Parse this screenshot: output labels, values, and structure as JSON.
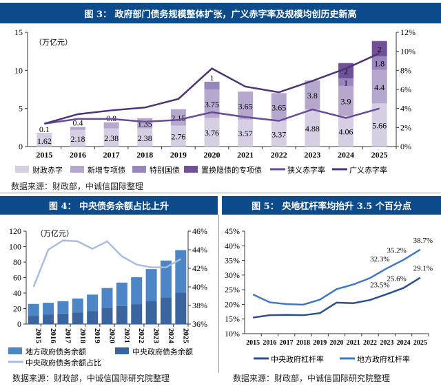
{
  "fig3": {
    "title": "图 3： 政府部门债务规模整体扩张，广义赤字率及规模均创历史新高",
    "source": "数据来源：财政部，中诚信国际整理"
  },
  "fig4": {
    "title": "图 4： 中央债务余额占比上升",
    "source": "数据来源：财政部，中诚信国际研究院整理"
  },
  "fig5": {
    "title": "图 5： 央地杠杆率均抬升 3.5 个百分点",
    "source": "数据来源：财政部，中诚信国际研究院整理"
  },
  "chart_data": [
    {
      "type": "bar",
      "stacked": true,
      "unit_label": "（万亿元）",
      "categories": [
        "2015",
        "2016",
        "2017",
        "2018",
        "2019",
        "2020",
        "2021",
        "2022",
        "2023",
        "2024",
        "2025"
      ],
      "ylim": [
        0,
        15
      ],
      "yticks": [
        "0",
        "5",
        "10",
        "15"
      ],
      "y2lim": [
        0,
        12
      ],
      "y2ticks": [
        "0%",
        "2%",
        "4%",
        "6%",
        "8%",
        "10%",
        "12%"
      ],
      "series": [
        {
          "name": "财政赤字",
          "kind": "bar",
          "color": "#d6cfe3",
          "values": [
            1.62,
            2.18,
            2.38,
            2.38,
            2.76,
            3.76,
            3.57,
            3.37,
            4.88,
            4.06,
            5.66
          ],
          "labels": [
            "1.62",
            "2.18",
            "2.38",
            "2.38",
            "2.76",
            "3.76",
            "3.57",
            "3.37",
            "4.88",
            "4.06",
            "5.66"
          ]
        },
        {
          "name": "新增专项债",
          "kind": "bar",
          "color": "#b5a8cc",
          "values": [
            0.1,
            0.4,
            0.8,
            1.35,
            2.15,
            3.75,
            3.65,
            3.65,
            3.8,
            3.9,
            4.4
          ],
          "labels": [
            "0.1",
            "0.4",
            "0.8",
            "1.35",
            "2.15",
            "3.75",
            "3.65",
            "3.65",
            "3.8",
            "3.9",
            "4.4"
          ]
        },
        {
          "name": "特别国债",
          "kind": "bar",
          "color": "#9a86be",
          "values": [
            0,
            0,
            0,
            0,
            0,
            1,
            0,
            0,
            0,
            1,
            1.8
          ],
          "labels": [
            "",
            "",
            "",
            "",
            "",
            "1",
            "",
            "",
            "",
            "1",
            "1.8"
          ]
        },
        {
          "name": "置换隐债的专项债",
          "kind": "bar",
          "color": "#6f5099",
          "values": [
            0,
            0,
            0,
            0,
            0,
            0,
            0,
            0,
            0,
            2,
            2
          ],
          "labels": [
            "",
            "",
            "",
            "",
            "",
            "",
            "",
            "",
            "",
            "2",
            "2"
          ]
        },
        {
          "name": "狭义赤字率",
          "kind": "line",
          "axis": "right",
          "color": "#6a4c96",
          "values": [
            2.4,
            2.9,
            2.9,
            2.6,
            2.8,
            3.6,
            3.1,
            2.7,
            3.9,
            3.0,
            4.0
          ]
        },
        {
          "name": "广义赤字率",
          "kind": "line",
          "axis": "right",
          "color": "#4e3379",
          "values": [
            2.4,
            3.4,
            3.8,
            4.1,
            5.0,
            8.2,
            6.3,
            5.7,
            6.9,
            8.2,
            9.8
          ]
        }
      ]
    },
    {
      "type": "bar",
      "stacked": true,
      "unit_label": "（万亿元）",
      "categories": [
        "2015",
        "2016",
        "2017",
        "2018",
        "2019",
        "2020",
        "2021",
        "2022",
        "2023",
        "2024",
        "2025"
      ],
      "ylim": [
        0,
        120
      ],
      "yticks": [
        "0",
        "20",
        "40",
        "60",
        "80",
        "100",
        "120"
      ],
      "y2lim": [
        36,
        46
      ],
      "y2ticks": [
        "36%",
        "38%",
        "40%",
        "42%",
        "44%",
        "46%"
      ],
      "series": [
        {
          "name": "中央政府债务余额",
          "kind": "bar",
          "color": "#3b659e",
          "values": [
            10.6,
            12,
            13.5,
            15,
            16.8,
            20.8,
            23.2,
            25.7,
            30,
            34.5,
            40.5
          ]
        },
        {
          "name": "地方政府债务余额",
          "kind": "bar",
          "color": "#4d86c6",
          "values": [
            15.4,
            15.5,
            16,
            18,
            21.2,
            25.7,
            30.3,
            34.8,
            41,
            47.5,
            55
          ]
        },
        {
          "name": "中央政府债务余额占比",
          "kind": "line",
          "axis": "right",
          "color": "#a9bde0",
          "values": [
            40,
            44,
            45,
            44.9,
            44.1,
            44.9,
            43.3,
            42.4,
            42.1,
            42.1,
            43
          ]
        }
      ]
    },
    {
      "type": "line",
      "categories": [
        "2015",
        "2016",
        "2017",
        "2018",
        "2019",
        "2020",
        "2021",
        "2022",
        "2023",
        "2024",
        "2025"
      ],
      "ylim": [
        10,
        45
      ],
      "yticks": [
        "10%",
        "15%",
        "20%",
        "25%",
        "30%",
        "35%",
        "40%",
        "45%"
      ],
      "series": [
        {
          "name": "中央政府杠杆率",
          "color": "#2a4f8f",
          "values": [
            15.5,
            16.3,
            16.4,
            16.3,
            17,
            20.6,
            20.4,
            21.5,
            23.5,
            25.6,
            29.1
          ],
          "labels": [
            "",
            "",
            "",
            "",
            "",
            "",
            "",
            "",
            "23.5%",
            "25.6%",
            "29.1%"
          ]
        },
        {
          "name": "地方政府杠杆率",
          "color": "#3f78c4",
          "values": [
            23.4,
            20.7,
            20.1,
            19.9,
            21.6,
            25.2,
            26.8,
            29,
            32.3,
            35.2,
            38.7
          ],
          "labels": [
            "",
            "",
            "",
            "",
            "",
            "",
            "",
            "",
            "32.3%",
            "35.2%",
            "38.7%"
          ]
        }
      ]
    }
  ]
}
